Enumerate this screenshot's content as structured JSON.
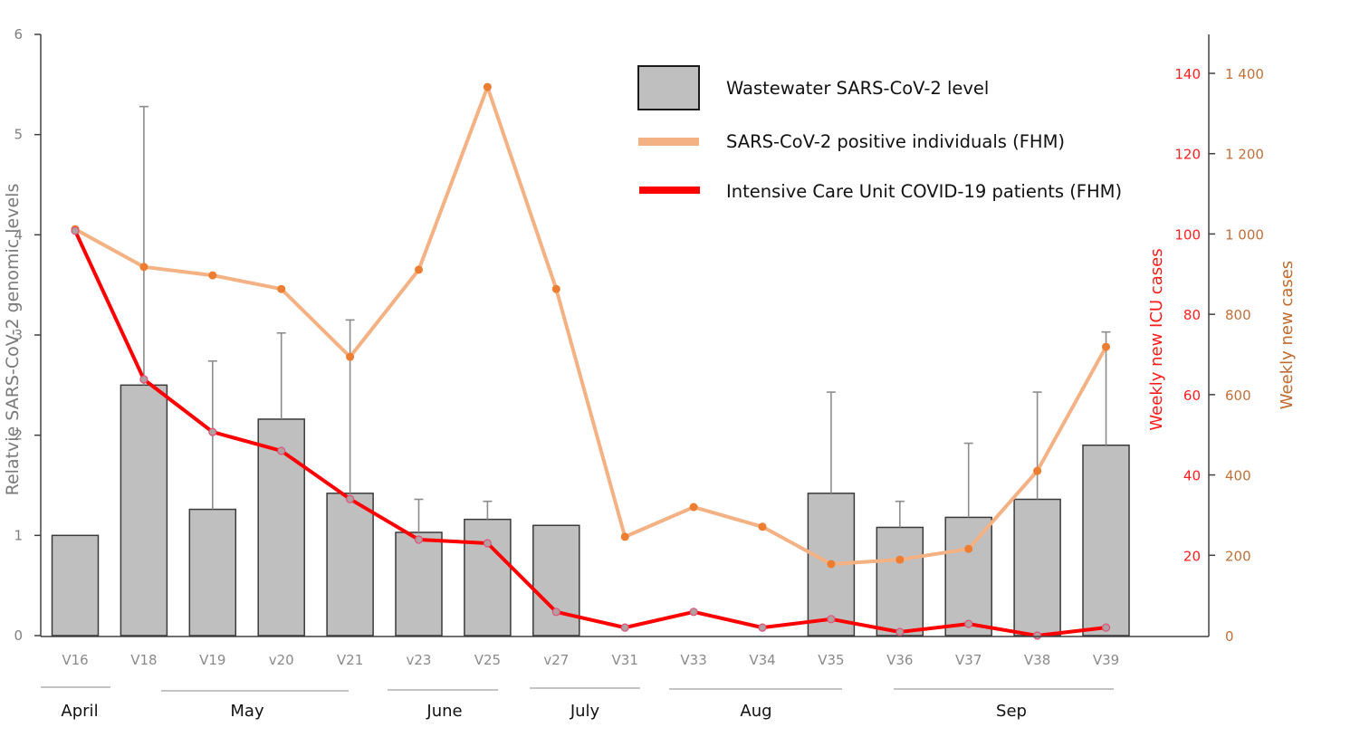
{
  "chart_data": {
    "type": "bar",
    "title": "",
    "categories": [
      "V16",
      "V18",
      "V19",
      "v20",
      "V21",
      "v23",
      "V25",
      "v27",
      "V31",
      "V33",
      "V34",
      "V35",
      "V36",
      "V37",
      "V38",
      "V39"
    ],
    "months": [
      {
        "label": "April",
        "from": "V16",
        "to": "V16"
      },
      {
        "label": "May",
        "from": "V18",
        "to": "V21"
      },
      {
        "label": "June",
        "from": "v23",
        "to": "V25"
      },
      {
        "label": "July",
        "from": "v27",
        "to": "V31"
      },
      {
        "label": "Aug",
        "from": "V33",
        "to": "V35"
      },
      {
        "label": "Sep",
        "from": "V36",
        "to": "V39"
      }
    ],
    "series": [
      {
        "name": "Wastewater SARS-CoV-2 level",
        "type": "bar",
        "axis": "left",
        "color": "#bfbfbf",
        "values": [
          1.0,
          2.5,
          1.26,
          2.16,
          1.42,
          1.03,
          1.16,
          1.1,
          null,
          null,
          null,
          1.42,
          1.08,
          1.18,
          1.36,
          1.9
        ],
        "error_upper": [
          null,
          5.28,
          2.74,
          3.02,
          3.15,
          1.36,
          1.34,
          null,
          null,
          null,
          null,
          2.43,
          1.34,
          1.92,
          2.43,
          3.03
        ]
      },
      {
        "name": "SARS-CoV-2 positive individuals (FHM)",
        "type": "line",
        "axis": "right-cases",
        "color": "#f4b183",
        "marker_color": "#ed7d31",
        "values": [
          1012,
          918,
          897,
          863,
          694,
          911,
          1366,
          863,
          246,
          320,
          271,
          178,
          189,
          216,
          410,
          719
        ]
      },
      {
        "name": "Intensive Care Unit COVID-19 patients (FHM)",
        "type": "line",
        "axis": "right-icu",
        "color": "#ff0000",
        "marker_color": "#b0a0a0",
        "values": [
          100.8,
          63.8,
          50.7,
          46.0,
          34.0,
          23.9,
          23.0,
          5.9,
          2.0,
          5.9,
          2.0,
          4.1,
          0.9,
          2.9,
          0,
          2.0
        ]
      }
    ],
    "axes": {
      "left": {
        "label": "Relatvie SARS-CoV-2 genomic levels",
        "ylim": [
          0,
          6
        ],
        "ticks": [
          "0",
          "1",
          "2",
          "3",
          "4",
          "5",
          "6"
        ],
        "tick_values": [
          0,
          1,
          2,
          3,
          4,
          5,
          6
        ]
      },
      "right_icu": {
        "label": "Weekly new ICU cases",
        "ylim": [
          0,
          150
        ],
        "ticks": [
          "20",
          "40",
          "60",
          "80",
          "100",
          "120",
          "140"
        ],
        "tick_values": [
          20,
          40,
          60,
          80,
          100,
          120,
          140
        ]
      },
      "right_cases": {
        "label": "Weekly new cases",
        "ylim": [
          0,
          1500
        ],
        "ticks": [
          "0",
          "200",
          "400",
          "600",
          "800",
          "1 000",
          "1 200",
          "1 400"
        ],
        "tick_values": [
          0,
          200,
          400,
          600,
          800,
          1000,
          1200,
          1400
        ]
      }
    },
    "grid": false,
    "legend_position": "top-right",
    "legend": [
      {
        "label": "Wastewater SARS-CoV-2 level",
        "kind": "box"
      },
      {
        "label": "SARS-CoV-2 positive individuals (FHM)",
        "kind": "line"
      },
      {
        "label": "Intensive Care Unit COVID-19 patients (FHM)",
        "kind": "line"
      }
    ]
  }
}
